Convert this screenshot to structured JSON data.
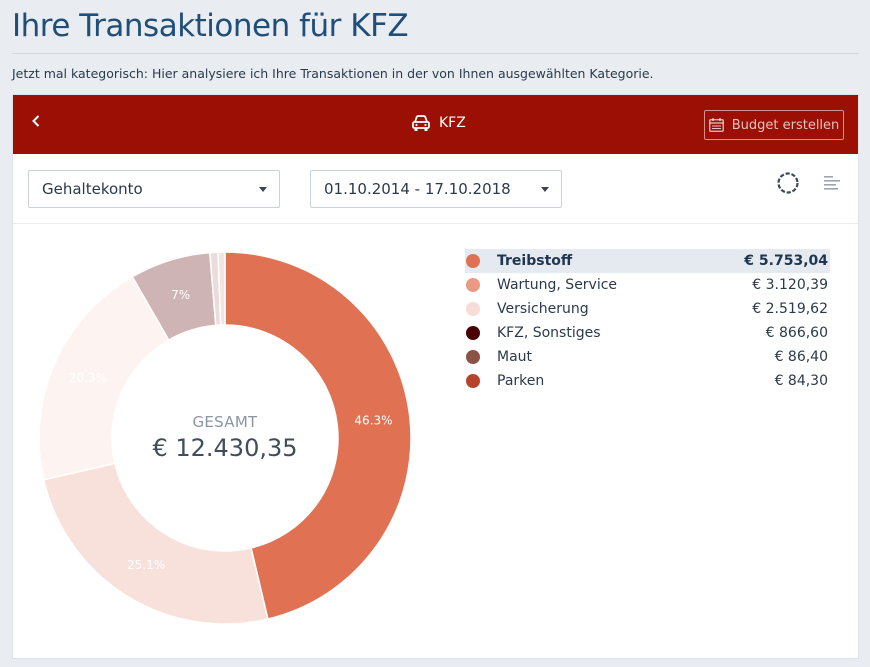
{
  "page": {
    "title": "Ihre Transaktionen für KFZ",
    "subtitle": "Jetzt mal kategorisch: Hier analysiere ich Ihre Transaktionen in der von Ihnen ausgewählten Kategorie."
  },
  "header": {
    "back_icon": "chevron-left-icon",
    "category_icon": "car-icon",
    "category": "KFZ",
    "budget_button_label": "Budget erstellen",
    "budget_button_icon": "calendar-icon",
    "background_color": "#9b0f04"
  },
  "toolbar": {
    "account_select": "Gehaltekonto",
    "date_range_select": "01.10.2014 - 17.10.2018",
    "donut_view_icon": "donut-chart-icon",
    "list_view_icon": "bar-list-icon"
  },
  "summary": {
    "label": "GESAMT",
    "total": "€ 12.430,35"
  },
  "legend": [
    {
      "name": "Treibstoff",
      "value": "€ 5.753,04",
      "color": "#e07153",
      "active": true
    },
    {
      "name": "Wartung, Service",
      "value": "€ 3.120,39",
      "color": "#ea9a82",
      "active": false
    },
    {
      "name": "Versicherung",
      "value": "€ 2.519,62",
      "color": "#f6ddd5",
      "active": false
    },
    {
      "name": "KFZ, Sonstiges",
      "value": "€ 866,60",
      "color": "#4a0000",
      "active": false
    },
    {
      "name": "Maut",
      "value": "€ 86,40",
      "color": "#8b5346",
      "active": false
    },
    {
      "name": "Parken",
      "value": "€ 84,30",
      "color": "#b6432b",
      "active": false
    }
  ],
  "chart_data": {
    "type": "pie",
    "donut": true,
    "total": 12430.35,
    "slices": [
      {
        "label": "46.3%",
        "value": 46.3,
        "color": "#e07153",
        "label_color": "#ffffff",
        "show_label": true
      },
      {
        "label": "25.1%",
        "value": 25.1,
        "color": "#f7e1da",
        "label_color": "#ffffff",
        "show_label": true
      },
      {
        "label": "20.3%",
        "value": 20.3,
        "color": "#fdf3f1",
        "label_color": "#ffffff",
        "show_label": true
      },
      {
        "label": "7%",
        "value": 7.0,
        "color": "#ceb4b5",
        "label_color": "#ffffff",
        "show_label": true
      },
      {
        "label": "",
        "value": 0.7,
        "color": "#ebdcdc",
        "label_color": "#ffffff",
        "show_label": false
      },
      {
        "label": "",
        "value": 0.6,
        "color": "#f4e4e0",
        "label_color": "#ffffff",
        "show_label": false
      }
    ]
  }
}
